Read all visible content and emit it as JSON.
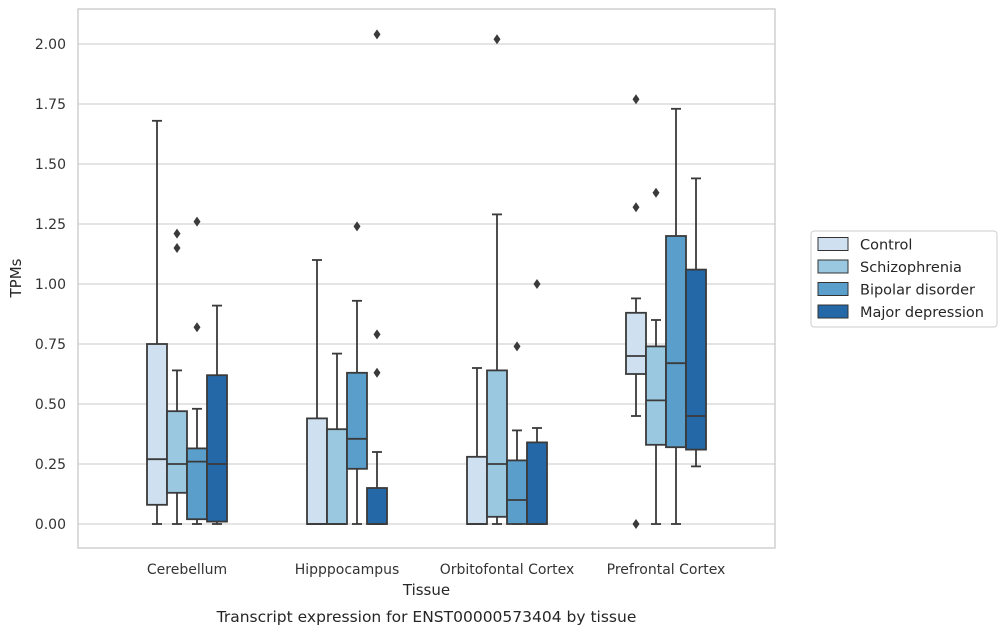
{
  "chart_data": {
    "type": "box",
    "title": "",
    "caption": "Transcript expression for ENST00000573404 by tissue",
    "xlabel": "Tissue",
    "ylabel": "TPMs",
    "ylim": [
      -0.1,
      2.15
    ],
    "yticks": [
      "0.00",
      "0.25",
      "0.50",
      "0.75",
      "1.00",
      "1.25",
      "1.50",
      "1.75",
      "2.00"
    ],
    "grid": true,
    "legend_position": "right",
    "categories": [
      "Cerebellum",
      "Hipppocampus",
      "Orbitofontal Cortex",
      "Prefrontal Cortex"
    ],
    "series": [
      {
        "name": "Control",
        "color": "#cfe0f1",
        "boxes": [
          {
            "whisker_low": 0.0,
            "q1": 0.08,
            "median": 0.27,
            "q3": 0.75,
            "whisker_high": 1.68,
            "outliers": []
          },
          {
            "whisker_low": 0.0,
            "q1": 0.0,
            "median": 0.0,
            "q3": 0.44,
            "whisker_high": 1.1,
            "outliers": []
          },
          {
            "whisker_low": 0.0,
            "q1": 0.0,
            "median": 0.0,
            "q3": 0.28,
            "whisker_high": 0.65,
            "outliers": []
          },
          {
            "whisker_low": 0.45,
            "q1": 0.625,
            "median": 0.7,
            "q3": 0.88,
            "whisker_high": 0.94,
            "outliers": [
              0.0,
              1.32,
              1.77
            ]
          }
        ]
      },
      {
        "name": "Schizophrenia",
        "color": "#9ac8e0",
        "boxes": [
          {
            "whisker_low": 0.0,
            "q1": 0.13,
            "median": 0.25,
            "q3": 0.47,
            "whisker_high": 0.64,
            "outliers": [
              1.15,
              1.21
            ]
          },
          {
            "whisker_low": 0.0,
            "q1": 0.0,
            "median": 0.0,
            "q3": 0.395,
            "whisker_high": 0.71,
            "outliers": []
          },
          {
            "whisker_low": 0.0,
            "q1": 0.03,
            "median": 0.25,
            "q3": 0.64,
            "whisker_high": 1.29,
            "outliers": [
              2.02
            ]
          },
          {
            "whisker_low": 0.0,
            "q1": 0.33,
            "median": 0.515,
            "q3": 0.74,
            "whisker_high": 0.85,
            "outliers": [
              1.38
            ]
          }
        ]
      },
      {
        "name": "Bipolar disorder",
        "color": "#5a9ecc",
        "boxes": [
          {
            "whisker_low": 0.0,
            "q1": 0.02,
            "median": 0.26,
            "q3": 0.315,
            "whisker_high": 0.48,
            "outliers": [
              0.82,
              1.26
            ]
          },
          {
            "whisker_low": 0.0,
            "q1": 0.23,
            "median": 0.355,
            "q3": 0.63,
            "whisker_high": 0.93,
            "outliers": [
              1.24
            ]
          },
          {
            "whisker_low": 0.0,
            "q1": 0.0,
            "median": 0.1,
            "q3": 0.265,
            "whisker_high": 0.39,
            "outliers": [
              0.74
            ]
          },
          {
            "whisker_low": 0.0,
            "q1": 0.32,
            "median": 0.67,
            "q3": 1.2,
            "whisker_high": 1.73,
            "outliers": []
          }
        ]
      },
      {
        "name": "Major depression",
        "color": "#2568a8",
        "boxes": [
          {
            "whisker_low": 0.0,
            "q1": 0.01,
            "median": 0.25,
            "q3": 0.62,
            "whisker_high": 0.91,
            "outliers": []
          },
          {
            "whisker_low": 0.0,
            "q1": 0.0,
            "median": 0.0,
            "q3": 0.15,
            "whisker_high": 0.3,
            "outliers": [
              0.63,
              0.79,
              2.04
            ]
          },
          {
            "whisker_low": 0.0,
            "q1": 0.0,
            "median": 0.0,
            "q3": 0.34,
            "whisker_high": 0.4,
            "outliers": [
              1.0
            ]
          },
          {
            "whisker_low": 0.24,
            "q1": 0.31,
            "median": 0.45,
            "q3": 1.06,
            "whisker_high": 1.44,
            "outliers": []
          }
        ]
      }
    ]
  }
}
